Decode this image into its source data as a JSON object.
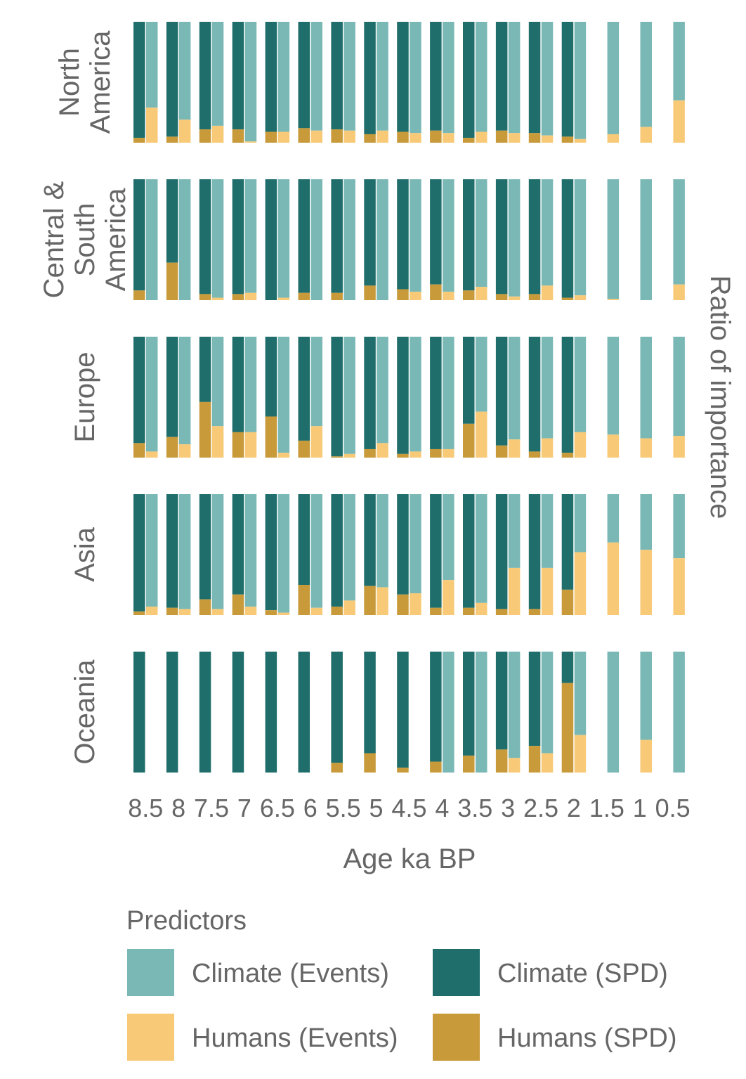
{
  "chart_data": {
    "type": "bar",
    "stacked": true,
    "orientation": "vertical",
    "xlabel": "Age ka BP",
    "ylabel": "Ratio of importance",
    "ylim": [
      0,
      1
    ],
    "tick_labels": [
      "8.5",
      "8",
      "7.5",
      "7",
      "6.5",
      "6",
      "5.5",
      "5",
      "4.5",
      "4",
      "3.5",
      "3",
      "2.5",
      "2",
      "1.5",
      "1",
      "0.5"
    ],
    "grid": false,
    "legend": {
      "title": "Predictors",
      "placement": "bottom",
      "entries": [
        {
          "key": "climate_events",
          "label": "Climate (Events)",
          "color": "#7ab8b6"
        },
        {
          "key": "climate_spd",
          "label": "Climate (SPD)",
          "color": "#1f6e6b"
        },
        {
          "key": "humans_events",
          "label": "Humans (Events)",
          "color": "#f8ca78"
        },
        {
          "key": "humans_spd",
          "label": "Humans (SPD)",
          "color": "#c89a3a"
        }
      ]
    },
    "panels": [
      {
        "label": [
          "North",
          "America"
        ],
        "spd_humans": [
          0.04,
          0.05,
          0.11,
          0.11,
          0.09,
          0.12,
          0.11,
          0.07,
          0.09,
          0.1,
          0.04,
          0.1,
          0.08,
          0.05,
          null,
          null,
          null
        ],
        "events_humans": [
          0.29,
          0.19,
          0.14,
          0.01,
          0.09,
          0.1,
          0.1,
          0.1,
          0.08,
          0.08,
          0.09,
          0.08,
          0.06,
          0.03,
          0.07,
          0.13,
          0.35
        ]
      },
      {
        "label": [
          "Central &",
          "South",
          "America"
        ],
        "spd_humans": [
          0.08,
          0.31,
          0.05,
          0.05,
          0.0,
          0.06,
          0.06,
          0.12,
          0.09,
          0.13,
          0.08,
          0.05,
          0.05,
          0.02,
          null,
          null,
          null
        ],
        "events_humans": [
          0.0,
          0.0,
          0.02,
          0.06,
          0.02,
          0.0,
          0.0,
          0.0,
          0.07,
          0.07,
          0.11,
          0.03,
          0.12,
          0.04,
          0.01,
          0.0,
          0.13
        ]
      },
      {
        "label": [
          "Europe"
        ],
        "spd_humans": [
          0.12,
          0.17,
          0.46,
          0.21,
          0.34,
          0.14,
          0.01,
          0.07,
          0.03,
          0.07,
          0.28,
          0.1,
          0.05,
          0.04,
          null,
          null,
          null
        ],
        "events_humans": [
          0.05,
          0.11,
          0.26,
          0.21,
          0.04,
          0.26,
          0.03,
          0.12,
          0.05,
          0.07,
          0.38,
          0.15,
          0.16,
          0.21,
          0.19,
          0.16,
          0.18
        ]
      },
      {
        "label": [
          "Asia"
        ],
        "spd_humans": [
          0.03,
          0.06,
          0.13,
          0.17,
          0.04,
          0.25,
          0.07,
          0.24,
          0.17,
          0.06,
          0.06,
          0.05,
          0.05,
          0.21,
          null,
          null,
          null
        ],
        "events_humans": [
          0.07,
          0.05,
          0.05,
          0.07,
          0.02,
          0.06,
          0.12,
          0.23,
          0.18,
          0.29,
          0.1,
          0.39,
          0.39,
          0.52,
          0.6,
          0.54,
          0.47
        ]
      },
      {
        "label": [
          "Oceania"
        ],
        "spd_humans": [
          0.0,
          0.0,
          0.0,
          0.0,
          0.0,
          0.0,
          0.08,
          0.16,
          0.04,
          0.09,
          0.14,
          0.19,
          0.22,
          0.74,
          null,
          null,
          null
        ],
        "events_humans": [
          null,
          null,
          null,
          null,
          null,
          null,
          null,
          null,
          null,
          0.0,
          0.0,
          0.12,
          0.16,
          0.31,
          0.0,
          0.27,
          0.0
        ]
      }
    ]
  }
}
